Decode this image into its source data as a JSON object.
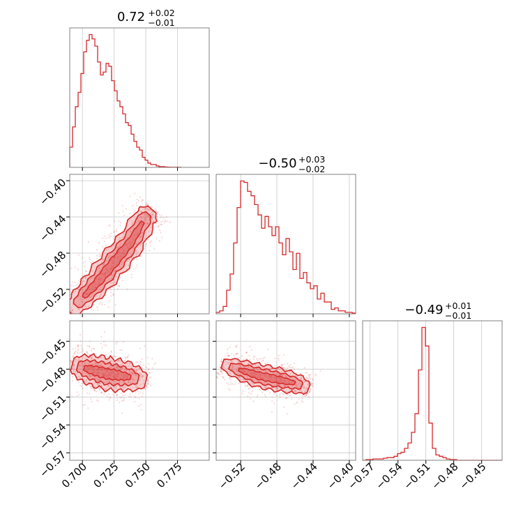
{
  "chart_data": {
    "type": "corner",
    "color": "#d62728",
    "parameters": [
      {
        "title": {
          "median": "0.72",
          "plus": "+0.02",
          "minus": "−0.01"
        },
        "range": [
          0.69,
          0.8
        ],
        "ticks": [
          0.7,
          0.725,
          0.75,
          0.775
        ],
        "tick_labels": [
          "0.700",
          "0.725",
          "0.750",
          "0.775"
        ],
        "hist_bin_width": 0.0022,
        "hist_counts": [
          0.14,
          0.28,
          0.42,
          0.52,
          0.65,
          0.8,
          0.88,
          0.92,
          0.89,
          0.84,
          0.73,
          0.64,
          0.66,
          0.72,
          0.7,
          0.6,
          0.53,
          0.46,
          0.42,
          0.37,
          0.31,
          0.29,
          0.23,
          0.18,
          0.14,
          0.12,
          0.07,
          0.05,
          0.03,
          0.02,
          0.02,
          0.01,
          0.005,
          0.005,
          0.003,
          0.002,
          0.001,
          0.001,
          0.001,
          0.001
        ]
      },
      {
        "title": {
          "median": "−0.50",
          "plus": "+0.03",
          "minus": "−0.02"
        },
        "range": [
          -0.547,
          -0.393
        ],
        "ticks": [
          -0.52,
          -0.48,
          -0.44,
          -0.4
        ],
        "tick_labels": [
          "−0.52",
          "−0.48",
          "−0.44",
          "−0.40"
        ],
        "hist_bin_width": 0.00385,
        "hist_counts": [
          0.01,
          0.02,
          0.05,
          0.16,
          0.27,
          0.48,
          0.72,
          0.9,
          0.89,
          0.83,
          0.8,
          0.74,
          0.67,
          0.58,
          0.66,
          0.59,
          0.53,
          0.59,
          0.48,
          0.4,
          0.51,
          0.42,
          0.3,
          0.41,
          0.24,
          0.28,
          0.21,
          0.17,
          0.19,
          0.1,
          0.14,
          0.08,
          0.08,
          0.03,
          0.04,
          0.02,
          0.02,
          0.01,
          0.01,
          0.005
        ]
      },
      {
        "title": {
          "median": "−0.49",
          "plus": "+0.01",
          "minus": "−0.01"
        },
        "range": [
          -0.578,
          -0.428
        ],
        "ticks": [
          -0.57,
          -0.54,
          -0.51,
          -0.48,
          -0.45
        ],
        "tick_labels": [
          "−0.57",
          "−0.54",
          "−0.51",
          "−0.48",
          "−0.45"
        ],
        "hist_bin_width": 0.00375,
        "hist_counts": [
          0.0,
          0.005,
          0.005,
          0.01,
          0.01,
          0.01,
          0.015,
          0.02,
          0.02,
          0.03,
          0.05,
          0.06,
          0.09,
          0.13,
          0.21,
          0.35,
          0.68,
          1.0,
          0.86,
          0.28,
          0.09,
          0.04,
          0.03,
          0.02,
          0.01,
          0.005,
          0.005,
          0.0,
          0.0,
          0.0,
          0.0,
          0.0,
          0.0,
          0.0,
          0.0,
          0.0,
          0.0,
          0.0,
          0.0,
          0.0
        ]
      }
    ],
    "pairs": [
      {
        "row": 1,
        "col": 0,
        "ylim": [
          -0.547,
          -0.393
        ],
        "path": [
          [
            0.69,
            -0.545
          ],
          [
            0.7,
            -0.53
          ],
          [
            0.712,
            -0.512
          ],
          [
            0.725,
            -0.49
          ],
          [
            0.738,
            -0.468
          ],
          [
            0.75,
            -0.44
          ],
          [
            0.755,
            -0.432
          ]
        ],
        "spread": 0.01
      },
      {
        "row": 2,
        "col": 0,
        "ylim": [
          -0.578,
          -0.428
        ],
        "path": [
          [
            0.692,
            -0.475
          ],
          [
            0.705,
            -0.48
          ],
          [
            0.72,
            -0.485
          ],
          [
            0.735,
            -0.488
          ],
          [
            0.75,
            -0.493
          ]
        ],
        "spread": 0.011
      },
      {
        "row": 2,
        "col": 1,
        "ylim": [
          -0.578,
          -0.428
        ],
        "path": [
          [
            -0.54,
            -0.474
          ],
          [
            -0.52,
            -0.481
          ],
          [
            -0.5,
            -0.487
          ],
          [
            -0.48,
            -0.491
          ],
          [
            -0.46,
            -0.495
          ],
          [
            -0.445,
            -0.501
          ]
        ],
        "spread": 0.008
      }
    ]
  }
}
